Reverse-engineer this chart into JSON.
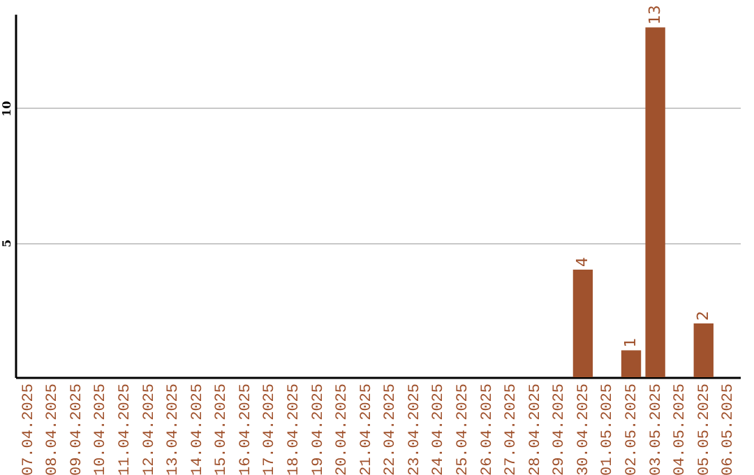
{
  "chart_data": {
    "type": "bar",
    "categories": [
      "07.04.2025",
      "08.04.2025",
      "09.04.2025",
      "10.04.2025",
      "11.04.2025",
      "12.04.2025",
      "13.04.2025",
      "14.04.2025",
      "15.04.2025",
      "16.04.2025",
      "17.04.2025",
      "18.04.2025",
      "19.04.2025",
      "20.04.2025",
      "21.04.2025",
      "22.04.2025",
      "23.04.2025",
      "24.04.2025",
      "25.04.2025",
      "26.04.2025",
      "27.04.2025",
      "28.04.2025",
      "29.04.2025",
      "30.04.2025",
      "01.05.2025",
      "02.05.2025",
      "03.05.2025",
      "04.05.2025",
      "05.05.2025",
      "06.05.2025"
    ],
    "values": [
      0,
      0,
      0,
      0,
      0,
      0,
      0,
      0,
      0,
      0,
      0,
      0,
      0,
      0,
      0,
      0,
      0,
      0,
      0,
      0,
      0,
      0,
      0,
      4,
      0,
      1,
      13,
      0,
      2,
      0
    ],
    "value_labels": [
      null,
      null,
      null,
      null,
      null,
      null,
      null,
      null,
      null,
      null,
      null,
      null,
      null,
      null,
      null,
      null,
      null,
      null,
      null,
      null,
      null,
      null,
      null,
      "4",
      null,
      "1",
      "13",
      null,
      "2",
      null
    ],
    "color": "#a0522d",
    "ylim": [
      0,
      13.5
    ],
    "yticks": [
      5,
      10
    ],
    "grid": "y"
  }
}
